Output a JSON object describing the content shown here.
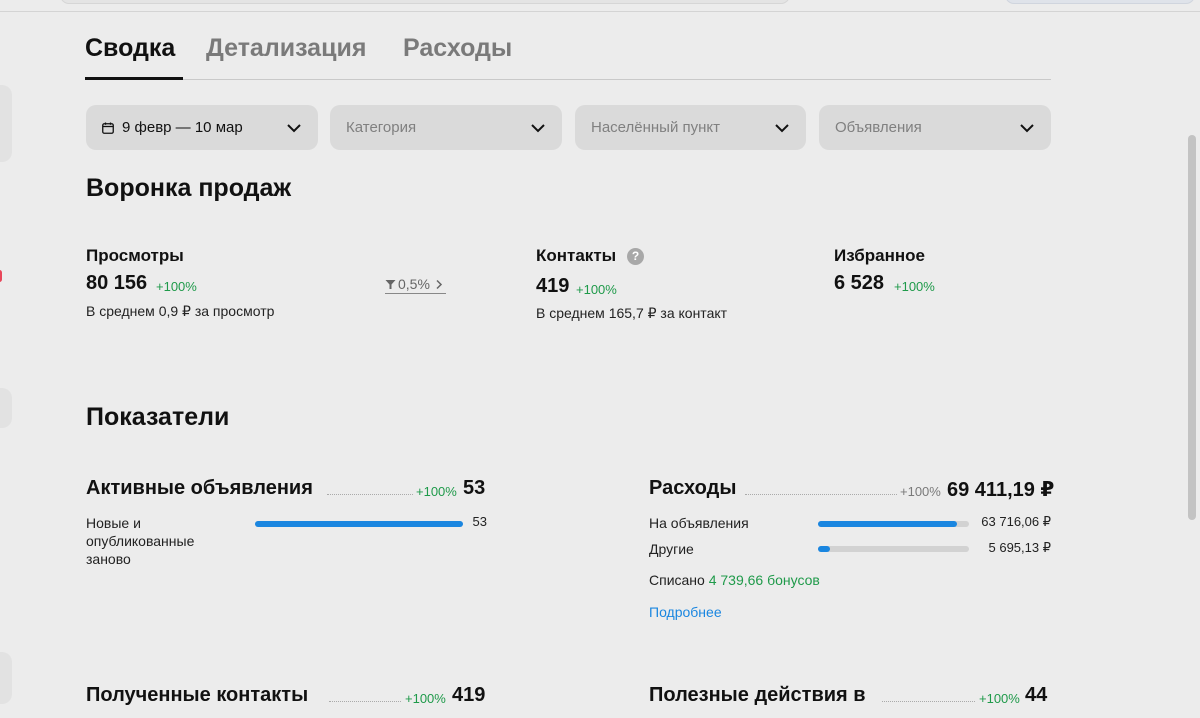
{
  "tabs": [
    {
      "label": "Сводка",
      "active": true
    },
    {
      "label": "Детализация",
      "active": false
    },
    {
      "label": "Расходы",
      "active": false
    }
  ],
  "filters": {
    "date": {
      "label": "9 февр — 10 мар",
      "icon": "calendar-icon"
    },
    "category": {
      "placeholder": "Категория"
    },
    "location": {
      "placeholder": "Населённый пункт"
    },
    "ads": {
      "placeholder": "Объявления"
    }
  },
  "funnel": {
    "title": "Воронка продаж",
    "views": {
      "label": "Просмотры",
      "value": "80 156",
      "change": "+100%",
      "note": "В среднем 0,9 ₽ за просмотр"
    },
    "conversion": {
      "value": "0,5%"
    },
    "contacts": {
      "label": "Контакты",
      "help": "?",
      "value": "419",
      "change": "+100%",
      "note": "В среднем 165,7 ₽ за контакт"
    },
    "favorites": {
      "label": "Избранное",
      "value": "6 528",
      "change": "+100%"
    }
  },
  "metrics": {
    "title": "Показатели",
    "active_ads": {
      "label": "Активные объявления",
      "change": "+100%",
      "value": "53",
      "rows": [
        {
          "label": "Новые и опубликованные заново",
          "value": "53",
          "fraction": 1.0
        }
      ]
    },
    "expenses": {
      "label": "Расходы",
      "change": "+100%",
      "value": "69 411,19 ₽",
      "rows": [
        {
          "label": "На объявления",
          "value": "63 716,06 ₽",
          "fraction": 0.92
        },
        {
          "label": "Другие",
          "value": "5 695,13 ₽",
          "fraction": 0.08
        }
      ],
      "writeoff_label": "Списано",
      "writeoff_bonus": "4 739,66 бонусов",
      "more_link": "Подробнее"
    },
    "received_contacts": {
      "label": "Полученные контакты",
      "change": "+100%",
      "value": "419"
    },
    "useful_actions": {
      "label": "Полезные действия в",
      "change": "+100%",
      "value": "44"
    }
  },
  "colors": {
    "accent": "#1a86e0",
    "positive": "#1f9a4a",
    "bar_track": "#d2d2d2"
  }
}
